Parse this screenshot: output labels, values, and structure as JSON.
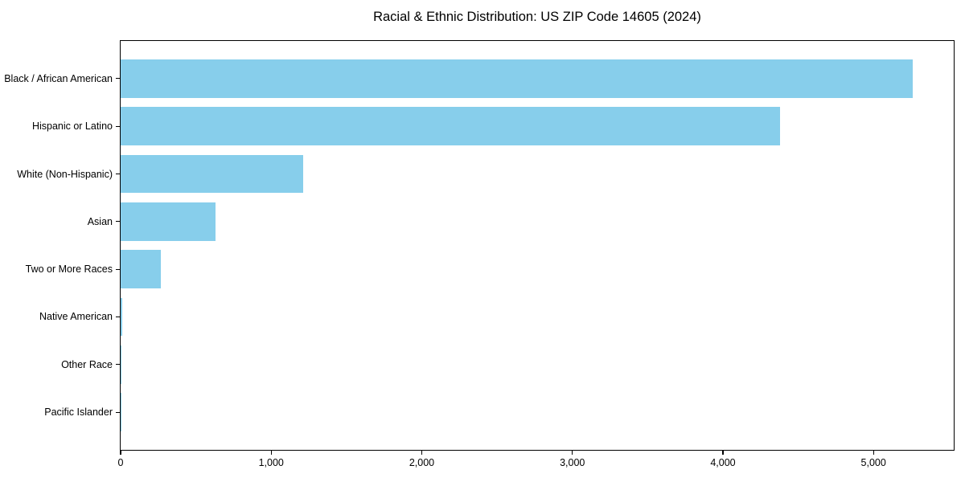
{
  "title": "Racial & Ethnic Distribution: US ZIP Code 14605 (2024)",
  "chart_data": {
    "type": "bar",
    "orientation": "horizontal",
    "title": "Racial & Ethnic Distribution: US ZIP Code 14605 (2024)",
    "categories": [
      "Black / African American",
      "Hispanic or Latino",
      "White (Non-Hispanic)",
      "Asian",
      "Two or More Races",
      "Native American",
      "Other Race",
      "Pacific Islander"
    ],
    "values": [
      5260,
      4380,
      1215,
      630,
      265,
      10,
      4,
      1
    ],
    "bar_color": "#87CEEB",
    "xlabel": "",
    "ylabel": "",
    "xlim": [
      0,
      5533
    ],
    "x_ticks": [
      0,
      1000,
      2000,
      3000,
      4000,
      5000
    ],
    "x_tick_labels": [
      "0",
      "1,000",
      "2,000",
      "3,000",
      "4,000",
      "5,000"
    ],
    "grid": false,
    "legend": null,
    "background_color": "#ffffff",
    "spine_color": "#000000"
  }
}
